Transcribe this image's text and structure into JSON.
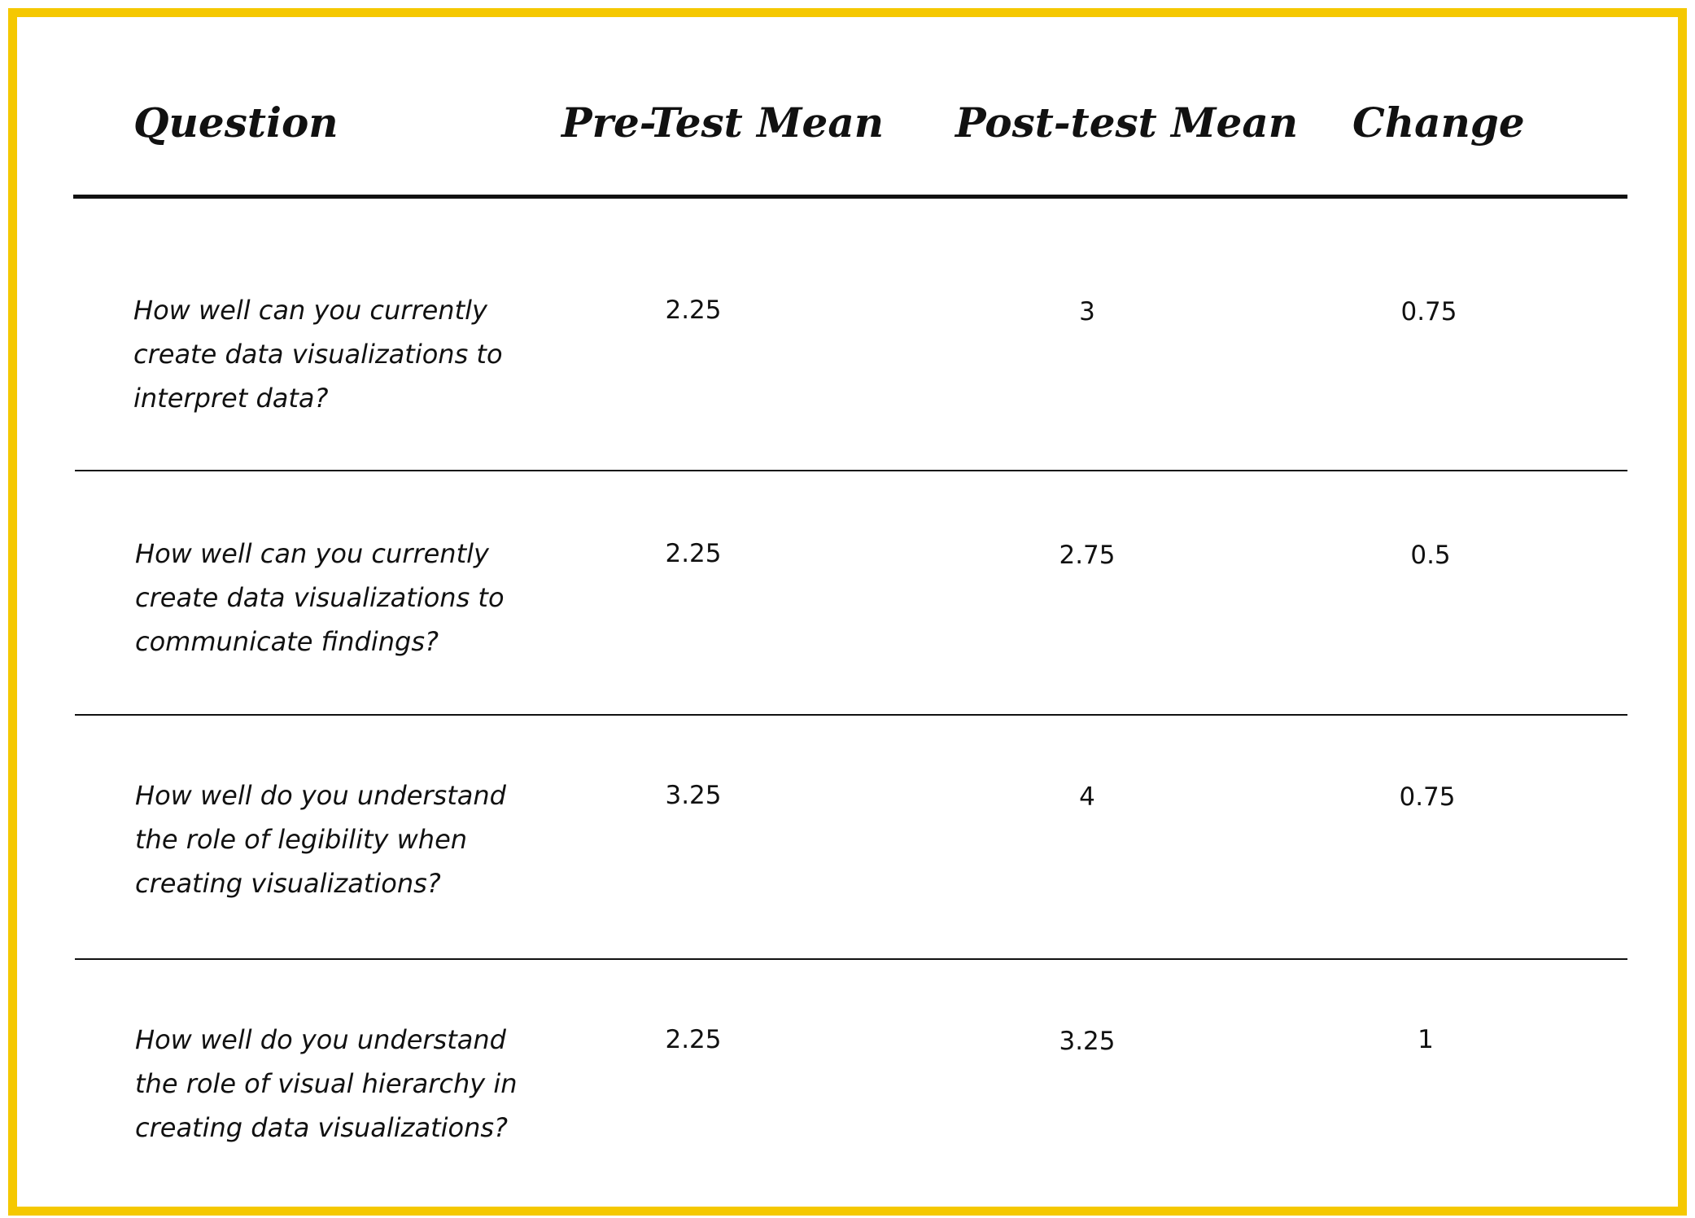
{
  "colors": {
    "border": "#f5c800",
    "text": "#111111",
    "background": "#ffffff"
  },
  "table": {
    "headers": {
      "question": "Question",
      "pre": "Pre-Test Mean",
      "post": "Post-test Mean",
      "change": "Change"
    },
    "rows": [
      {
        "question": "How well can you currently create data visualizations to interpret data?",
        "pre": "2.25",
        "post": "3",
        "change": "0.75"
      },
      {
        "question": "How well can you currently create data visualizations to communicate findings?",
        "pre": "2.25",
        "post": "2.75",
        "change": "0.5"
      },
      {
        "question": "How well do you understand the role of legibility when creating visualizations?",
        "pre": "3.25",
        "post": "4",
        "change": "0.75"
      },
      {
        "question": "How well do you understand the role of visual hierarchy in creating data visualizations?",
        "pre": "2.25",
        "post": "3.25",
        "change": "1"
      }
    ]
  }
}
